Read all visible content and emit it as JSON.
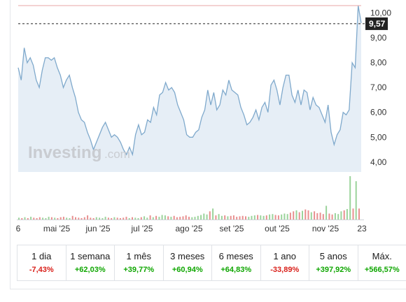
{
  "chart_data": {
    "type": "area",
    "x_tick_labels": [
      "6",
      "mai '25",
      "jun '25",
      "jul '25",
      "ago '25",
      "set '25",
      "out '25",
      "nov '25",
      "23"
    ],
    "y_tick_labels": [
      "10,00",
      "9,00",
      "8,00",
      "7,00",
      "6,00",
      "5,00",
      "4,00"
    ],
    "y_ticks": [
      10,
      9,
      8,
      7,
      6,
      5,
      4
    ],
    "ylim": [
      3.6,
      10.3
    ],
    "current_price_label": "9,57",
    "current_price": 9.57,
    "high_line": 10.3,
    "series": [
      {
        "values": [
          7.8,
          7.3,
          8.6,
          8.0,
          8.2,
          7.9,
          7.3,
          7.0,
          7.7,
          8.2,
          8.2,
          8.1,
          8.2,
          7.8,
          7.5,
          7.0,
          7.3,
          7.5,
          7.0,
          6.6,
          6.0,
          5.7,
          5.6,
          5.2,
          4.9,
          4.5,
          4.8,
          5.1,
          5.4,
          5.6,
          5.3,
          5.0,
          5.1,
          5.0,
          4.8,
          4.5,
          4.3,
          4.6,
          4.3,
          5.1,
          5.5,
          5.1,
          5.2,
          5.7,
          5.6,
          6.2,
          5.9,
          6.7,
          6.8,
          7.2,
          6.9,
          7.0,
          6.8,
          6.3,
          6.0,
          5.7,
          5.1,
          5.0,
          5.0,
          5.2,
          5.3,
          5.8,
          6.1,
          6.9,
          6.3,
          6.8,
          6.1,
          6.3,
          6.9,
          6.7,
          7.3,
          6.9,
          6.8,
          6.7,
          6.2,
          5.9,
          5.5,
          5.6,
          5.8,
          6.1,
          5.7,
          6.2,
          6.4,
          6.0,
          7.1,
          7.3,
          6.9,
          6.3,
          7.0,
          7.5,
          7.5,
          6.7,
          6.4,
          6.9,
          6.3,
          6.9,
          6.8,
          6.1,
          6.6,
          6.3,
          6.2,
          5.9,
          5.6,
          6.3,
          5.2,
          4.7,
          5.1,
          5.3,
          6.0,
          5.9,
          6.1,
          8.0,
          7.8,
          10.3,
          9.6
        ]
      },
      {
        "name": "volume",
        "values": [
          0.4,
          0.3,
          0.5,
          0.3,
          0.6,
          0.4,
          0.3,
          0.5,
          0.4,
          0.3,
          0.6,
          0.5,
          0.4,
          0.3,
          0.5,
          0.6,
          0.4,
          0.3,
          0.8,
          0.5,
          0.4,
          0.3,
          0.5,
          0.9,
          0.4,
          0.3,
          0.5,
          0.4,
          0.3,
          0.6,
          0.4,
          0.3,
          0.5,
          0.4,
          0.3,
          0.4,
          0.6,
          0.3,
          0.5,
          0.4,
          0.3,
          0.5,
          0.7,
          0.4,
          0.9,
          0.5,
          0.8,
          0.6,
          1.0,
          0.9,
          0.7,
          0.6,
          0.8,
          0.5,
          0.6,
          0.7,
          0.9,
          0.6,
          0.5,
          0.6,
          0.8,
          1.0,
          1.3,
          1.1,
          1.8,
          2.4,
          0.9,
          1.2,
          0.8,
          0.9,
          0.7,
          0.8,
          0.9,
          0.6,
          0.7,
          0.8,
          0.7,
          0.6,
          0.8,
          0.9,
          1.0,
          0.9,
          0.8,
          0.9,
          1.1,
          1.2,
          1.0,
          0.9,
          1.1,
          1.3,
          1.2,
          1.5,
          1.8,
          2.0,
          1.6,
          1.9,
          2.2,
          2.0,
          1.6,
          1.8,
          1.4,
          1.5,
          1.2,
          3.0,
          1.3,
          1.1,
          1.4,
          1.2,
          1.8,
          2.0,
          2.3,
          9.5,
          2.4,
          8.4,
          2.4
        ],
        "colors_pattern": "red for down days, green for up days"
      }
    ],
    "colors": {
      "line": "#7fa9cc",
      "area": "#e6eef6",
      "high_line": "#e8a5a5",
      "dash": "#222222",
      "tag": "#222222",
      "vol_up": "#9bd39b",
      "vol_down": "#e88f8f"
    },
    "watermark": {
      "brand": "Investing",
      "suffix": ".com"
    }
  },
  "periods": [
    {
      "label": "1 dia",
      "change": "-7,43%",
      "dir": "neg"
    },
    {
      "label": "1 semana",
      "change": "+62,03%",
      "dir": "pos"
    },
    {
      "label": "1 mês",
      "change": "+39,77%",
      "dir": "pos"
    },
    {
      "label": "3 meses",
      "change": "+60,94%",
      "dir": "pos"
    },
    {
      "label": "6 meses",
      "change": "+64,83%",
      "dir": "pos"
    },
    {
      "label": "1 ano",
      "change": "-33,89%",
      "dir": "neg"
    },
    {
      "label": "5 anos",
      "change": "+397,92%",
      "dir": "pos"
    },
    {
      "label": "Máx.",
      "change": "+566,57%",
      "dir": "pos"
    }
  ]
}
